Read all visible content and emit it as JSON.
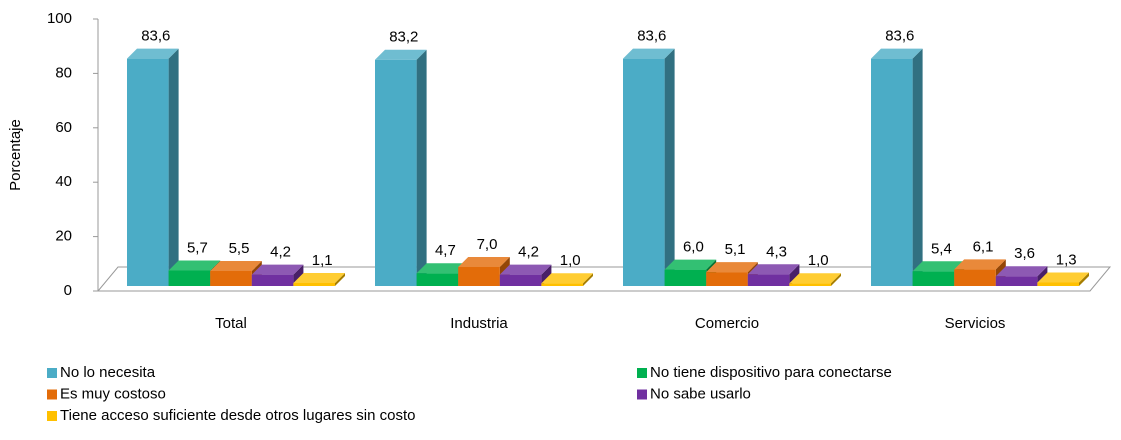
{
  "chart_data": {
    "type": "bar3d",
    "ylabel": "Porcentaje",
    "categories": [
      "Total",
      "Industria",
      "Comercio",
      "Servicios"
    ],
    "series": [
      {
        "name": "No lo necesita",
        "color": "#4bacc6",
        "values": [
          83.6,
          83.2,
          83.6,
          83.6
        ],
        "value_labels": [
          "83,6",
          "83,2",
          "83,6",
          "83,6"
        ]
      },
      {
        "name": "No tiene dispositivo para conectarse",
        "color": "#00b050",
        "values": [
          5.7,
          4.7,
          6.0,
          5.4
        ],
        "value_labels": [
          "5,7",
          "4,7",
          "6,0",
          "5,4"
        ]
      },
      {
        "name": "Es muy costoso",
        "color": "#e36c09",
        "values": [
          5.5,
          7.0,
          5.1,
          6.1
        ],
        "value_labels": [
          "5,5",
          "7,0",
          "5,1",
          "6,1"
        ]
      },
      {
        "name": "No sabe usarlo",
        "color": "#7030a0",
        "values": [
          4.2,
          4.2,
          4.3,
          3.6
        ],
        "value_labels": [
          "4,2",
          "4,2",
          "4,3",
          "3,6"
        ]
      },
      {
        "name": "Tiene acceso suficiente desde otros lugares sin costo",
        "color": "#ffc000",
        "values": [
          1.1,
          1.0,
          1.0,
          1.3
        ],
        "value_labels": [
          "1,1",
          "1,0",
          "1,0",
          "1,3"
        ]
      }
    ],
    "ylim": [
      0,
      100
    ],
    "yticks": [
      0,
      20,
      40,
      60,
      80,
      100
    ],
    "grid": false,
    "legend": "bottom"
  }
}
